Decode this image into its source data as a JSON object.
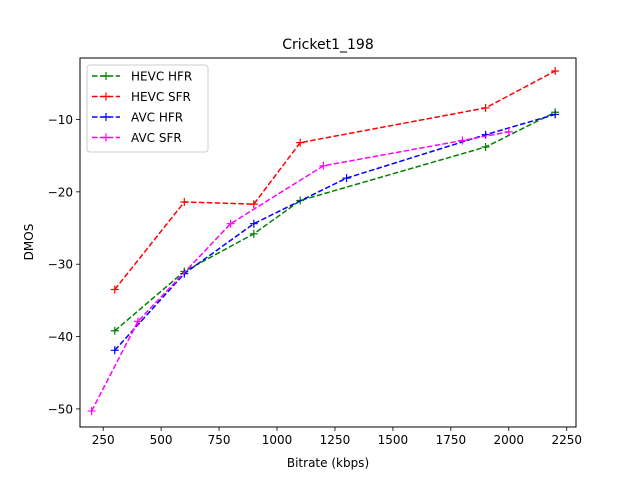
{
  "chart_data": {
    "type": "line",
    "title": "Cricket1_198",
    "xlabel": "Bitrate (kbps)",
    "ylabel": "DMOS",
    "xlim": [
      150,
      2290
    ],
    "ylim": [
      -52.5,
      -1.5
    ],
    "x_ticks": [
      250,
      500,
      750,
      1000,
      1250,
      1500,
      1750,
      2000,
      2250
    ],
    "y_ticks": [
      -50,
      -40,
      -30,
      -20,
      -10
    ],
    "grid": false,
    "legend_position": "top-left",
    "marker": "+",
    "line_style": "dashed",
    "series": [
      {
        "name": "HEVC HFR",
        "color": "#008000",
        "x": [
          300,
          600,
          900,
          1100,
          1900,
          2200
        ],
        "y": [
          -39.2,
          -31.0,
          -25.8,
          -21.2,
          -13.8,
          -9.0
        ]
      },
      {
        "name": "HEVC SFR",
        "color": "#ff0000",
        "x": [
          300,
          600,
          900,
          1100,
          1900,
          2200
        ],
        "y": [
          -33.5,
          -21.4,
          -21.7,
          -13.2,
          -8.4,
          -3.3
        ]
      },
      {
        "name": "AVC HFR",
        "color": "#0000ff",
        "x": [
          300,
          600,
          900,
          1300,
          1900,
          2200
        ],
        "y": [
          -41.9,
          -31.3,
          -24.4,
          -18.1,
          -12.1,
          -9.3
        ]
      },
      {
        "name": "AVC SFR",
        "color": "#ff00ff",
        "x": [
          200,
          400,
          800,
          1200,
          1800,
          2000
        ],
        "y": [
          -50.3,
          -37.9,
          -24.4,
          -16.4,
          -12.9,
          -11.7
        ]
      }
    ]
  }
}
